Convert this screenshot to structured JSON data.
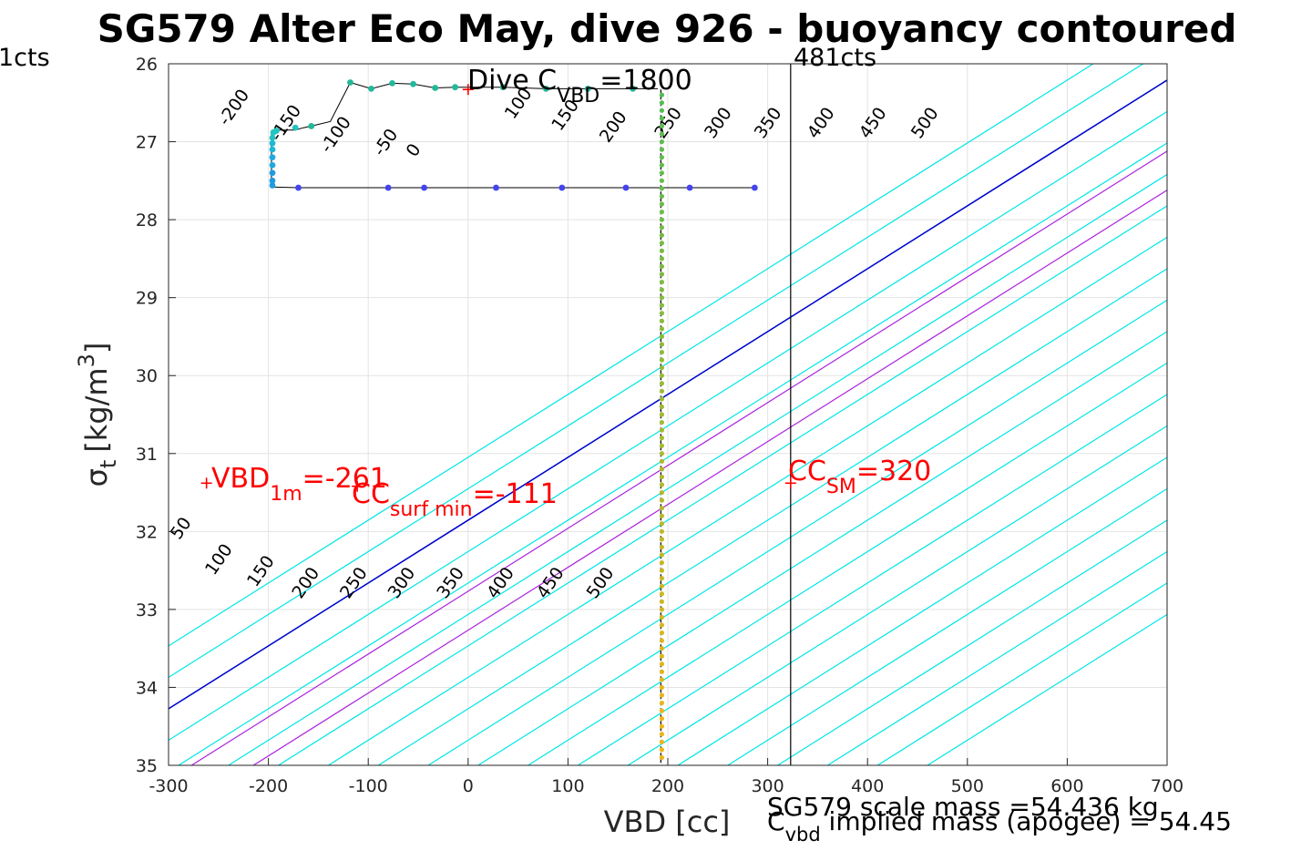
{
  "chart_data": {
    "type": "line",
    "title": "SG579 Alter Eco May, dive 926 - buoyancy contoured",
    "xlabel": "VBD [cc]",
    "ylabel_main": "σ",
    "ylabel_sub": "t",
    "ylabel_unit": "[kg/m",
    "ylabel_sup": "3",
    "ylabel_close": "]",
    "xlim": [
      -300,
      700
    ],
    "ylim": [
      26,
      35
    ],
    "y_reversed": true,
    "grid": true,
    "xticks": [
      "-300",
      "-200",
      "-100",
      "0",
      "100",
      "200",
      "300",
      "400",
      "500",
      "600",
      "700"
    ],
    "yticks": [
      "26",
      "27",
      "28",
      "29",
      "30",
      "31",
      "32",
      "33",
      "34",
      "35"
    ],
    "xtick_values": [
      -300,
      -200,
      -100,
      0,
      100,
      200,
      300,
      400,
      500,
      600,
      700
    ],
    "ytick_values": [
      26,
      27,
      28,
      29,
      30,
      31,
      32,
      33,
      34,
      35
    ],
    "contours": {
      "color": "#00e5e5",
      "zero_color": "#0000cc",
      "slope_cc_per_kgm3": 124,
      "offsets_at_sigma_35": [
        -490,
        -440,
        -390,
        -340,
        -290,
        -240,
        -190,
        -140,
        -90,
        -40,
        10,
        60,
        110,
        160,
        210,
        260,
        310,
        360,
        410,
        460
      ],
      "zero_offset_at_sigma_35": -390,
      "labels_top": [
        {
          "text": "-200",
          "x": -230,
          "y": 26.6
        },
        {
          "text": "-150",
          "x": -178,
          "y": 26.8
        },
        {
          "text": "-100",
          "x": -128,
          "y": 26.95
        },
        {
          "text": "-50",
          "x": -78,
          "y": 27.05
        },
        {
          "text": "0",
          "x": -50,
          "y": 27.15
        },
        {
          "text": "100",
          "x": 55,
          "y": 26.55
        },
        {
          "text": "150",
          "x": 102,
          "y": 26.7
        },
        {
          "text": "200",
          "x": 150,
          "y": 26.85
        },
        {
          "text": "250",
          "x": 205,
          "y": 26.8
        },
        {
          "text": "300",
          "x": 255,
          "y": 26.8
        },
        {
          "text": "350",
          "x": 305,
          "y": 26.8
        },
        {
          "text": "400",
          "x": 358,
          "y": 26.8
        },
        {
          "text": "450",
          "x": 410,
          "y": 26.8
        },
        {
          "text": "500",
          "x": 462,
          "y": 26.8
        }
      ],
      "labels_bottom": [
        {
          "text": "50",
          "x": -283,
          "y": 32.0
        },
        {
          "text": "100",
          "x": -245,
          "y": 32.4
        },
        {
          "text": "150",
          "x": -203,
          "y": 32.55
        },
        {
          "text": "200",
          "x": -158,
          "y": 32.7
        },
        {
          "text": "250",
          "x": -110,
          "y": 32.7
        },
        {
          "text": "300",
          "x": -62,
          "y": 32.7
        },
        {
          "text": "350",
          "x": -13,
          "y": 32.7
        },
        {
          "text": "400",
          "x": 37,
          "y": 32.7
        },
        {
          "text": "450",
          "x": 87,
          "y": 32.7
        },
        {
          "text": "500",
          "x": 137,
          "y": 32.7
        }
      ]
    },
    "purple_lines": {
      "color": "#aa22dd",
      "offsets_at_sigma_35": [
        -277,
        -215
      ],
      "slope_cc_per_kgm3": 124
    },
    "vline_black_x": 323,
    "series": [
      {
        "color": "#000000",
        "points": [
          [
            -197,
            27.58
          ],
          [
            -197,
            26.87
          ],
          [
            -192,
            26.85
          ],
          [
            -173,
            26.85
          ],
          [
            -165,
            26.82
          ],
          [
            -157,
            26.8
          ],
          [
            -138,
            26.74
          ],
          [
            -118,
            26.24
          ],
          [
            -97,
            26.32
          ],
          [
            -76,
            26.25
          ],
          [
            -55,
            26.26
          ],
          [
            -33,
            26.31
          ],
          [
            -13,
            26.3
          ],
          [
            3,
            26.3
          ],
          [
            35,
            26.3
          ],
          [
            78,
            26.32
          ],
          [
            120,
            26.32
          ],
          [
            190,
            26.32
          ]
        ]
      },
      {
        "color": "#000000",
        "points": [
          [
            -197,
            27.58
          ],
          [
            -170,
            27.59
          ],
          [
            -100,
            27.59
          ],
          [
            -80,
            27.59
          ],
          [
            -44,
            27.59
          ],
          [
            28,
            27.59
          ],
          [
            94,
            27.59
          ],
          [
            158,
            27.59
          ],
          [
            193,
            27.59
          ],
          [
            222,
            27.59
          ],
          [
            287,
            27.59
          ]
        ]
      }
    ],
    "dots_upper": [
      [
        -118,
        26.24,
        "#22b89a"
      ],
      [
        -97,
        26.32,
        "#22b89a"
      ],
      [
        -76,
        26.25,
        "#22b89a"
      ],
      [
        -55,
        26.26,
        "#22b89a"
      ],
      [
        -33,
        26.31,
        "#22b89a"
      ],
      [
        -13,
        26.3,
        "#22b89a"
      ],
      [
        35,
        26.3,
        "#22b89a"
      ],
      [
        78,
        26.32,
        "#22b89a"
      ],
      [
        120,
        26.32,
        "#22b89a"
      ],
      [
        165,
        26.32,
        "#22b89a"
      ],
      [
        -157,
        26.8,
        "#22b89a"
      ],
      [
        -173,
        26.82,
        "#22c4c0"
      ],
      [
        -192,
        26.86,
        "#22c4c0"
      ],
      [
        -195,
        26.88,
        "#22c4c0"
      ],
      [
        -196,
        26.95,
        "#22c4c0"
      ],
      [
        -196,
        27.02,
        "#1fb8d4"
      ],
      [
        -196,
        27.1,
        "#1fb8d4"
      ],
      [
        -196,
        27.2,
        "#22aadd"
      ],
      [
        -196,
        27.3,
        "#22aadd"
      ],
      [
        -196,
        27.4,
        "#229bdd"
      ],
      [
        -196,
        27.5,
        "#229bdd"
      ],
      [
        -196,
        27.56,
        "#229bdd"
      ]
    ],
    "dots_lower": [
      [
        -170,
        27.59
      ],
      [
        -80,
        27.59
      ],
      [
        -44,
        27.59
      ],
      [
        28,
        27.59
      ],
      [
        94,
        27.59
      ],
      [
        158,
        27.59
      ],
      [
        222,
        27.59
      ],
      [
        287,
        27.59
      ]
    ],
    "dots_lower_color": "#4444ee",
    "dive_vline_x": 193,
    "dive_vline_color": "#000000",
    "red_cross_points": [
      [
        0,
        26.33
      ],
      [
        -262,
        31.38
      ],
      [
        -111,
        31.42
      ],
      [
        323,
        31.38
      ]
    ],
    "annotations": {
      "dive_c_main": "Dive C",
      "dive_c_sub": "VBD",
      "dive_c_value": "=1800",
      "left_cts": "1cts",
      "right_cts": "481cts",
      "vbd1m_main": "VBD",
      "vbd1m_sub": "1m",
      "vbd1m_value": "=-261",
      "ccsurf_main": "CC",
      "ccsurf_sub": "surf min",
      "ccsurf_value": "=-111",
      "ccsm_main": "CC",
      "ccsm_sub": "SM",
      "ccsm_value": "=320",
      "scale_mass": "SG579 scale mass =54.436 kg",
      "cvbd_main": "C",
      "cvbd_sub": "vbd",
      "cvbd_rest": " implied mass (apogee) = 54.45"
    }
  }
}
